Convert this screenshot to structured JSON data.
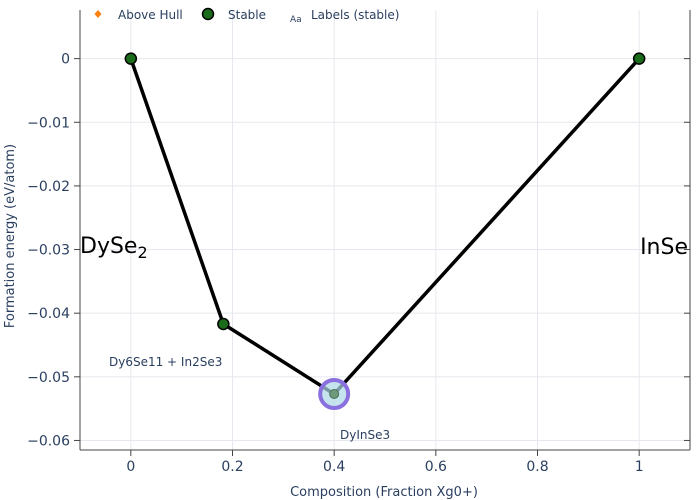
{
  "chart_data": {
    "type": "scatter",
    "xlabel": "Composition (Fraction Xg0+)",
    "ylabel": "Formation energy (eV/atom)",
    "xlim": [
      -0.1,
      1.1
    ],
    "ylim": [
      -0.0615,
      0.0045
    ],
    "x_ticks": [
      0,
      0.2,
      0.4,
      0.6,
      0.8,
      1
    ],
    "x_tick_labels": [
      "0",
      "0.2",
      "0.4",
      "0.6",
      "0.8",
      "1"
    ],
    "y_ticks": [
      0,
      -0.01,
      -0.02,
      -0.03,
      -0.04,
      -0.05,
      -0.06
    ],
    "y_tick_labels": [
      "0",
      "−0.01",
      "−0.02",
      "−0.03",
      "−0.04",
      "−0.05",
      "−0.06"
    ],
    "grid": true,
    "legend": {
      "placement": "top",
      "items": [
        {
          "label": "Above Hull",
          "marker": "diamond",
          "color": "#ff7f0e"
        },
        {
          "label": "Stable",
          "marker": "circle",
          "color": "#1a6b1a"
        },
        {
          "label": "Labels (stable)",
          "marker": "text",
          "marker_text": "Aa"
        }
      ]
    },
    "hull_line": {
      "color": "#000000",
      "x": [
        0,
        0.182,
        0.4,
        1
      ],
      "y": [
        0,
        -0.0417,
        -0.0527,
        0
      ]
    },
    "series": [
      {
        "name": "Stable",
        "color": "#1a6b1a",
        "x": [
          0,
          0.182,
          0.4,
          1
        ],
        "y": [
          0,
          -0.0417,
          -0.0527,
          0
        ]
      }
    ],
    "highlight": {
      "x": 0.4,
      "y": -0.0527,
      "ring_color": "#8a6fdf",
      "fill_color": "#add8e6"
    },
    "labels": {
      "left_end": {
        "base": "DySe",
        "sub": "2"
      },
      "right_end": "InSe",
      "annotations": [
        {
          "text": "Dy6Se11 + In2Se3",
          "x": 0.182,
          "y": -0.0417
        },
        {
          "text": "DyInSe3",
          "x": 0.4,
          "y": -0.0527
        }
      ]
    }
  }
}
